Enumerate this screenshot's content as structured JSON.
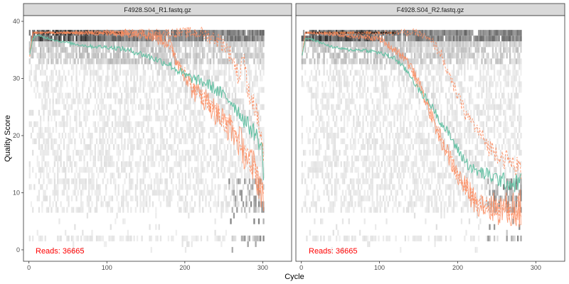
{
  "chart_data": {
    "type": "heatmap",
    "xlabel": "Cycle",
    "ylabel": "Quality Score",
    "xlim": [
      -7,
      337
    ],
    "ylim": [
      -2,
      41
    ],
    "x_ticks": [
      0,
      100,
      200,
      300
    ],
    "y_ticks": [
      0,
      10,
      20,
      30,
      40
    ],
    "grid": false,
    "colors": {
      "mean_line": "#66c2a5",
      "quantile_lines": "#fc8d62",
      "reads_label": "#ff0000",
      "heat_light": "#f0f0f0",
      "heat_dark": "#202020",
      "strip_fill": "#d9d9d9"
    },
    "panels": [
      {
        "title": "F4928.S04_R1.fastq.gz",
        "reads_prefix": "Reads:",
        "reads_value": "36665",
        "max_cycle": 301,
        "mean": {
          "x": [
            1,
            5,
            10,
            20,
            40,
            60,
            80,
            100,
            120,
            140,
            160,
            180,
            190,
            200,
            210,
            220,
            230,
            240,
            250,
            260,
            270,
            280,
            290,
            295,
            300,
            301
          ],
          "y": [
            34,
            37,
            37.5,
            37.2,
            36.5,
            36,
            35.6,
            35.5,
            35.2,
            34.5,
            33.5,
            32.5,
            31.5,
            30.5,
            30,
            29.5,
            29,
            28,
            27,
            26,
            24,
            22,
            20.5,
            19,
            17,
            12
          ]
        },
        "q25": {
          "x": [
            1,
            5,
            10,
            100,
            140,
            170,
            180,
            190,
            200,
            210,
            220,
            230,
            240,
            250,
            260,
            270,
            280,
            290,
            295,
            300,
            301
          ],
          "y": [
            34,
            38,
            38,
            38,
            38,
            37,
            36,
            33,
            31,
            28,
            27,
            26,
            24,
            22.5,
            21,
            19,
            16,
            14,
            12,
            10,
            8
          ]
        },
        "q75": {
          "x": [
            1,
            5,
            10,
            150,
            180,
            200,
            210,
            220,
            230,
            240,
            250,
            260,
            270,
            275,
            280,
            285,
            290,
            295,
            300,
            301
          ],
          "y": [
            34,
            38,
            38,
            38,
            38,
            38,
            38,
            38,
            37.5,
            37,
            36,
            34,
            30,
            35,
            28,
            27,
            25,
            22,
            18,
            16
          ]
        }
      },
      {
        "title": "F4928.S04_R2.fastq.gz",
        "reads_prefix": "Reads:",
        "reads_value": "36665",
        "max_cycle": 281,
        "mean": {
          "x": [
            1,
            5,
            10,
            20,
            30,
            40,
            60,
            80,
            100,
            120,
            130,
            140,
            150,
            160,
            170,
            180,
            190,
            200,
            210,
            220,
            230,
            240,
            250,
            260,
            270,
            281
          ],
          "y": [
            34,
            37,
            37,
            36.5,
            36,
            35.5,
            35,
            35,
            34.5,
            33.5,
            32,
            30.5,
            28,
            26.5,
            24.5,
            22,
            20,
            17.5,
            15.5,
            14,
            13.5,
            13,
            12.5,
            12,
            11.5,
            12
          ]
        },
        "q25": {
          "x": [
            1,
            5,
            10,
            100,
            120,
            130,
            140,
            150,
            160,
            170,
            180,
            190,
            200,
            210,
            220,
            230,
            240,
            260,
            281
          ],
          "y": [
            34,
            38,
            38,
            37,
            35,
            34,
            32,
            29,
            26,
            22,
            19,
            16,
            13,
            11,
            9,
            8,
            7.5,
            7,
            7
          ]
        },
        "q75": {
          "x": [
            1,
            5,
            10,
            140,
            150,
            160,
            170,
            180,
            190,
            200,
            210,
            220,
            230,
            240,
            250,
            260,
            270,
            281
          ],
          "y": [
            34,
            38,
            38,
            38,
            38,
            37,
            36,
            34,
            30,
            27,
            24,
            22,
            20,
            18,
            17,
            16,
            15,
            14
          ]
        }
      }
    ]
  }
}
